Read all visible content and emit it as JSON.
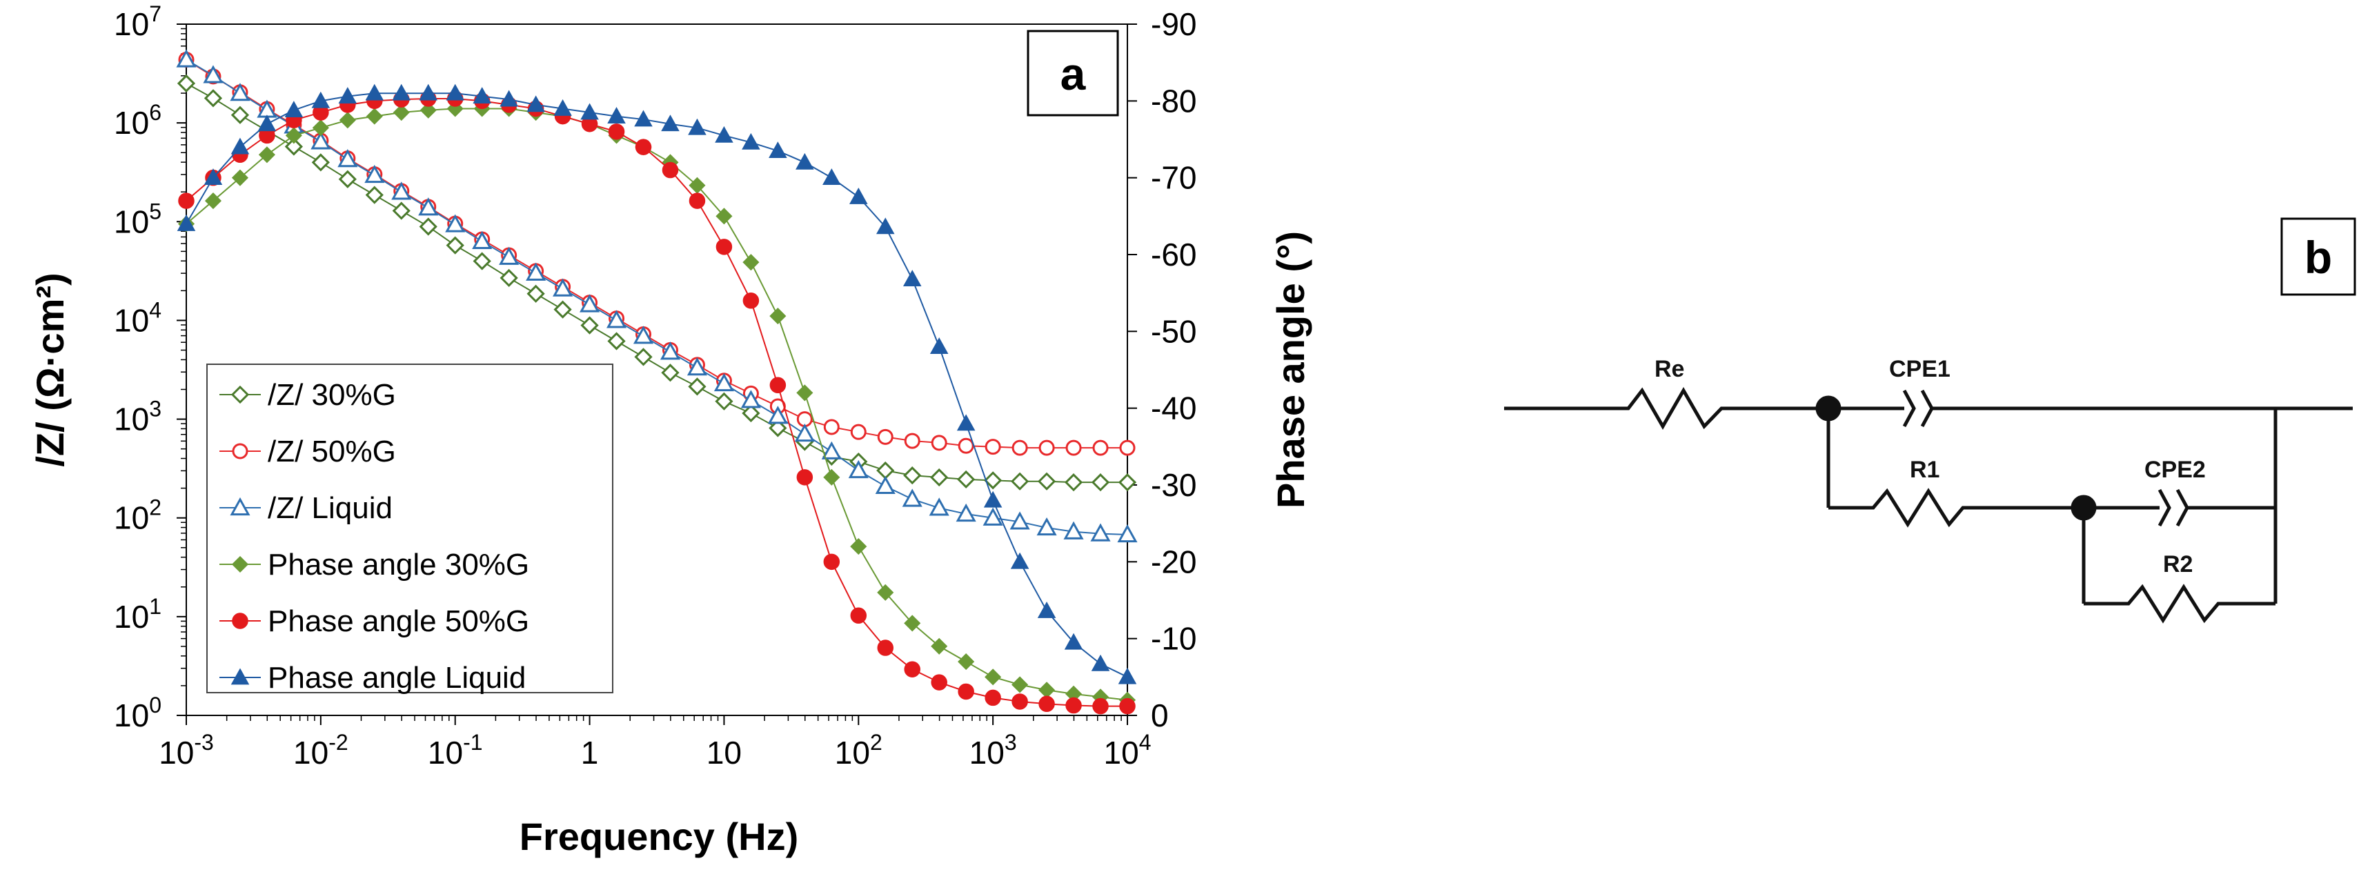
{
  "panel_a_label": "a",
  "panel_b_label": "b",
  "chart_data": {
    "type": "scatter",
    "title": "",
    "xlabel": "Frequency (Hz)",
    "ylabel": "/Z/ (Ω·cm²)",
    "y2label": "Phase angle (°)",
    "x_scale": "log",
    "xlim_exp": [
      -3,
      4
    ],
    "x_ticks": [
      {
        "base": "10",
        "exp": "-3"
      },
      {
        "base": "10",
        "exp": "-2"
      },
      {
        "base": "10",
        "exp": "-1"
      },
      {
        "base": "1",
        "exp": ""
      },
      {
        "base": "10",
        "exp": ""
      },
      {
        "base": "10",
        "exp": "2"
      },
      {
        "base": "10",
        "exp": "3"
      },
      {
        "base": "10",
        "exp": "4"
      }
    ],
    "y_scale": "log",
    "ylim_exp": [
      0,
      7
    ],
    "y_ticks": [
      {
        "base": "10",
        "exp": "0"
      },
      {
        "base": "10",
        "exp": "1"
      },
      {
        "base": "10",
        "exp": "2"
      },
      {
        "base": "10",
        "exp": "3"
      },
      {
        "base": "10",
        "exp": "4"
      },
      {
        "base": "10",
        "exp": "5"
      },
      {
        "base": "10",
        "exp": "6"
      },
      {
        "base": "10",
        "exp": "7"
      }
    ],
    "y2lim": [
      0,
      -90
    ],
    "y2_ticks": [
      "0",
      "-10",
      "-20",
      "-30",
      "-40",
      "-50",
      "-60",
      "-70",
      "-80",
      "-90"
    ],
    "legend_position": "bottom-left",
    "log_freq": [
      -3,
      -2.8,
      -2.6,
      -2.4,
      -2.2,
      -2,
      -1.8,
      -1.6,
      -1.4,
      -1.2,
      -1,
      -0.8,
      -0.6,
      -0.4,
      -0.2,
      0,
      0.2,
      0.4,
      0.6,
      0.8,
      1,
      1.2,
      1.4,
      1.6,
      1.8,
      2,
      2.2,
      2.4,
      2.6,
      2.8,
      3,
      3.2,
      3.4,
      3.6,
      3.8,
      4
    ],
    "series": [
      {
        "name": "/Z/ 30%G",
        "axis": "left",
        "marker": "diamond-open",
        "color": "#4a7a2c",
        "log_values": [
          6.4,
          6.25,
          6.08,
          5.92,
          5.76,
          5.6,
          5.43,
          5.27,
          5.11,
          4.95,
          4.76,
          4.6,
          4.43,
          4.27,
          4.11,
          3.95,
          3.79,
          3.63,
          3.47,
          3.33,
          3.18,
          3.06,
          2.91,
          2.77,
          2.62,
          2.57,
          2.48,
          2.43,
          2.41,
          2.39,
          2.38,
          2.37,
          2.37,
          2.36,
          2.36,
          2.36
        ]
      },
      {
        "name": "/Z/ 50%G",
        "axis": "left",
        "marker": "circle-open",
        "color": "#e8292b",
        "log_values": [
          6.64,
          6.47,
          6.31,
          6.14,
          5.98,
          5.82,
          5.64,
          5.48,
          5.31,
          5.15,
          4.98,
          4.82,
          4.66,
          4.5,
          4.34,
          4.18,
          4.02,
          3.86,
          3.7,
          3.55,
          3.39,
          3.26,
          3.13,
          3.0,
          2.92,
          2.87,
          2.82,
          2.78,
          2.76,
          2.73,
          2.72,
          2.71,
          2.71,
          2.71,
          2.71,
          2.71
        ]
      },
      {
        "name": "/Z/ Liquid",
        "axis": "left",
        "marker": "triangle-open",
        "color": "#2e6fb0",
        "log_values": [
          6.64,
          6.48,
          6.3,
          6.13,
          5.97,
          5.81,
          5.63,
          5.47,
          5.3,
          5.14,
          4.97,
          4.8,
          4.64,
          4.48,
          4.32,
          4.16,
          4.0,
          3.84,
          3.68,
          3.52,
          3.36,
          3.19,
          3.03,
          2.85,
          2.67,
          2.48,
          2.32,
          2.19,
          2.1,
          2.04,
          2.0,
          1.96,
          1.9,
          1.86,
          1.84,
          1.83
        ]
      },
      {
        "name": "Phase angle 30%G",
        "axis": "right",
        "marker": "diamond-filled",
        "color": "#6a9a35",
        "values": [
          -64,
          -67,
          -70,
          -73,
          -75.5,
          -76.5,
          -77.5,
          -78,
          -78.5,
          -78.8,
          -79,
          -79,
          -79,
          -78.5,
          -78,
          -77,
          -75.5,
          -74,
          -72,
          -69,
          -65,
          -59,
          -52,
          -42,
          -31,
          -22,
          -16,
          -12,
          -9,
          -7,
          -5,
          -4,
          -3.3,
          -2.8,
          -2.4,
          -2
        ]
      },
      {
        "name": "Phase angle 50%G",
        "axis": "right",
        "marker": "circle-filled",
        "color": "#e31a1c",
        "values": [
          -67,
          -70,
          -73,
          -75.5,
          -77.5,
          -78.5,
          -79.5,
          -80,
          -80.2,
          -80.3,
          -80.3,
          -80,
          -79.5,
          -79,
          -78,
          -77,
          -76,
          -74,
          -71,
          -67,
          -61,
          -54,
          -43,
          -31,
          -20,
          -13,
          -8.8,
          -6,
          -4.3,
          -3.1,
          -2.3,
          -1.8,
          -1.5,
          -1.3,
          -1.2,
          -1.2
        ]
      },
      {
        "name": "Phase angle Liquid",
        "axis": "right",
        "marker": "triangle-filled",
        "color": "#1f5aa3",
        "values": [
          -64,
          -70,
          -74,
          -77,
          -78.8,
          -80,
          -80.6,
          -81,
          -81,
          -81,
          -81,
          -80.6,
          -80.2,
          -79.5,
          -79,
          -78.5,
          -78,
          -77.6,
          -77,
          -76.5,
          -75.5,
          -74.6,
          -73.5,
          -72,
          -70,
          -67.5,
          -63.6,
          -56.8,
          -48,
          -38,
          -28,
          -20,
          -13.6,
          -9.5,
          -6.7,
          -5
        ]
      }
    ]
  },
  "circuit": {
    "re_label": "Re",
    "cpe1_label": "CPE1",
    "r1_label": "R1",
    "cpe2_label": "CPE2",
    "r2_label": "R2"
  }
}
